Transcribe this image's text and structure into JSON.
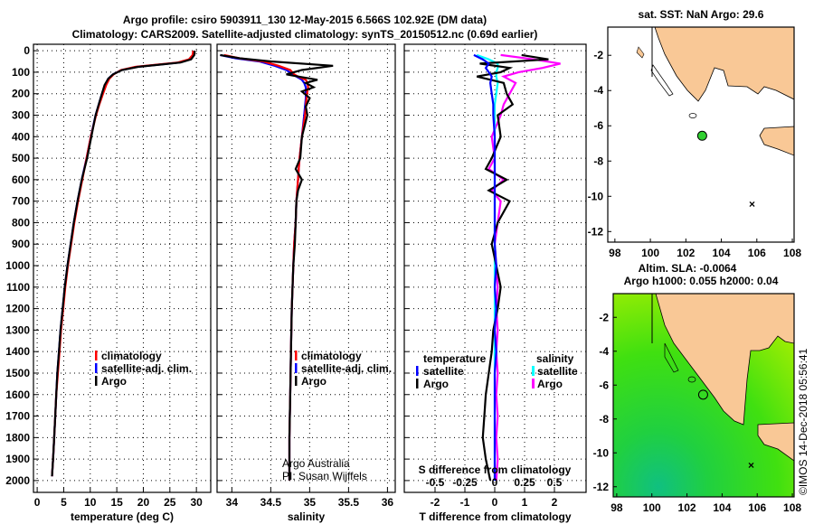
{
  "title_line1": "Argo profile: csiro 5903911_130 12-May-2015 6.566S 102.92E (DM data)",
  "title_line2": "Climatology: CARS2009. Satellite-adjusted climatology: synTS_20150512.nc (0.69d earlier)",
  "credit": "Argo Australia",
  "pi": "PI: Susan Wijffels",
  "copyright": "©IMOS 14-Dec-2018 05:56:41",
  "colors": {
    "argo": "#000000",
    "climatology": "#ff0000",
    "satellite": "#0000ff",
    "sal_satellite": "#00ffff",
    "sal_argo": "#ff00ff",
    "land": "#f9c896",
    "sea_map": "#ffffff"
  },
  "chart_data": [
    {
      "type": "line",
      "id": "temperature",
      "xlabel": "temperature (deg C)",
      "ylabel": "",
      "xlim": [
        -0.7,
        32.7
      ],
      "ylim": [
        -30,
        2055
      ],
      "y_reversed": true,
      "grid": true,
      "xticks": [
        0,
        5,
        10,
        15,
        20,
        25,
        30
      ],
      "yticks": [
        0,
        100,
        200,
        300,
        400,
        500,
        600,
        700,
        800,
        900,
        1000,
        1100,
        1200,
        1300,
        1400,
        1500,
        1600,
        1700,
        1800,
        1900,
        2000
      ],
      "legend": [
        "climatology",
        "satellite-adj. clim.",
        "Argo"
      ],
      "depth": [
        0,
        20,
        40,
        55,
        65,
        75,
        90,
        110,
        130,
        160,
        200,
        250,
        300,
        400,
        500,
        600,
        700,
        800,
        900,
        1000,
        1100,
        1200,
        1300,
        1400,
        1500,
        1600,
        1700,
        1800,
        1900,
        1980
      ],
      "series": [
        {
          "name": "Argo",
          "color": "#000000",
          "values": [
            29.7,
            29.6,
            29,
            27,
            23,
            19,
            16,
            14.3,
            13.4,
            12.7,
            12.2,
            11.6,
            11,
            10.2,
            9.4,
            8.4,
            7.6,
            6.9,
            6.3,
            5.7,
            5.2,
            4.8,
            4.4,
            4.1,
            3.8,
            3.6,
            3.4,
            3.2,
            3.0,
            2.8
          ]
        },
        {
          "name": "climatology",
          "color": "#ff0000",
          "values": [
            29.4,
            29.3,
            28.6,
            26.5,
            22.5,
            18.5,
            15.8,
            14.4,
            13.6,
            13,
            12.4,
            11.7,
            11.1,
            10.1,
            9.3,
            8.5,
            7.7,
            7.0,
            6.4,
            5.8,
            5.3,
            4.9,
            4.5,
            4.2,
            3.9,
            3.6,
            3.4,
            3.2,
            3.0,
            2.8
          ]
        },
        {
          "name": "satellite-adj. clim.",
          "color": "#0000ff",
          "values": [
            29.6,
            29.5,
            28.8,
            26.8,
            22.8,
            18.8,
            15.9,
            14.3,
            13.4,
            12.8,
            12.2,
            11.6,
            11.0,
            10.1,
            9.3,
            8.4,
            7.6,
            6.9,
            6.3,
            5.7,
            5.2,
            4.8,
            4.4,
            4.1,
            3.8,
            3.6,
            3.4,
            3.2,
            3.0,
            2.8
          ]
        }
      ]
    },
    {
      "type": "line",
      "id": "salinity",
      "xlabel": "salinity",
      "ylabel": "",
      "xlim": [
        33.81,
        36.1
      ],
      "ylim": [
        -30,
        2055
      ],
      "y_reversed": true,
      "grid": true,
      "xticks": [
        34,
        34.5,
        35,
        35.5,
        36
      ],
      "xtick_labels": [
        "34",
        "34.5",
        "35",
        "35.5",
        "36"
      ],
      "legend": [
        "climatology",
        "satellite-adj. clim.",
        "Argo"
      ],
      "depth": [
        20,
        35,
        50,
        70,
        90,
        110,
        120,
        135,
        150,
        170,
        190,
        220,
        260,
        300,
        400,
        500,
        550,
        600,
        650,
        700,
        800,
        900,
        1000,
        1200,
        1400,
        1600,
        1800,
        2000
      ],
      "series": [
        {
          "name": "Argo",
          "color": "#000000",
          "values": [
            33.85,
            34.1,
            34.5,
            35.3,
            34.9,
            34.7,
            34.85,
            35.1,
            34.95,
            35.05,
            34.9,
            35.0,
            34.95,
            34.97,
            34.9,
            34.88,
            34.82,
            34.9,
            34.85,
            34.83,
            34.82,
            34.81,
            34.79,
            34.77,
            34.76,
            34.75,
            34.74,
            34.74
          ]
        },
        {
          "name": "climatology",
          "color": "#ff0000",
          "values": [
            33.9,
            34.1,
            34.4,
            34.6,
            34.75,
            34.8,
            34.85,
            34.95,
            34.97,
            34.98,
            34.97,
            34.96,
            34.95,
            34.94,
            34.9,
            34.87,
            34.86,
            34.85,
            34.84,
            34.83,
            34.82,
            34.8,
            34.79,
            34.77,
            34.76,
            34.75,
            34.74,
            34.74
          ]
        },
        {
          "name": "satellite-adj. clim.",
          "color": "#0000ff",
          "values": [
            33.85,
            34.05,
            34.35,
            34.55,
            34.7,
            34.78,
            34.83,
            34.9,
            34.93,
            34.95,
            34.95,
            34.95,
            34.94,
            34.93,
            34.9,
            34.87,
            34.86,
            34.85,
            34.84,
            34.83,
            34.82,
            34.8,
            34.79,
            34.77,
            34.76,
            34.75,
            34.74,
            34.74
          ]
        }
      ]
    },
    {
      "type": "line",
      "id": "difference",
      "xlabel": "T difference from climatology",
      "x2label": "S difference from climatology",
      "xlim": [
        -3.03,
        3.06
      ],
      "ylim": [
        -30,
        2055
      ],
      "y_reversed": true,
      "grid": true,
      "xticks": [
        -2,
        -1,
        0,
        1,
        2
      ],
      "s_ticks": [
        -0.5,
        -0.25,
        0,
        0.25,
        0.5
      ],
      "s_tick_labels": [
        "-0.5",
        "-0.25",
        "0",
        "0.25",
        "0.5"
      ],
      "legend": {
        "temperature": [
          "satellite",
          "Argo"
        ],
        "salinity": [
          "satellite",
          "Argo"
        ],
        "temperature_title": "temperature",
        "salinity_title": "salinity"
      },
      "depth": [
        20,
        40,
        60,
        80,
        100,
        120,
        150,
        200,
        250,
        300,
        400,
        500,
        550,
        600,
        650,
        700,
        800,
        900,
        1000,
        1100,
        1200,
        1300,
        1400,
        1500,
        1600,
        1700,
        1800,
        1900,
        2000
      ],
      "series": [
        {
          "name": "temperature satellite",
          "color": "#0000ff",
          "values": [
            -0.7,
            -0.4,
            -0.2,
            -0.3,
            -0.2,
            -0.1,
            -0.15,
            -0.1,
            -0.05,
            -0.05,
            0,
            0,
            0,
            0,
            0,
            0,
            0,
            0,
            0.05,
            0,
            0.05,
            0,
            0.05,
            0,
            0,
            0,
            0,
            0,
            0
          ]
        },
        {
          "name": "temperature Argo",
          "color": "#000000",
          "values": [
            0.9,
            1.8,
            -0.5,
            0.5,
            0.2,
            -0.6,
            0.3,
            0.4,
            0.6,
            0.1,
            0.2,
            -0.1,
            -0.3,
            0.4,
            -0.2,
            0.5,
            0.1,
            -0.1,
            0.05,
            0.2,
            0.1,
            -0.05,
            -0.1,
            -0.2,
            -0.3,
            -0.35,
            -0.4,
            -0.3,
            -0.15
          ]
        },
        {
          "name": "salinity satellite",
          "color": "#00ffff",
          "values": [
            -0.6,
            -0.2,
            0.1,
            0.1,
            0.05,
            0.05,
            0.1,
            0.05,
            0,
            0,
            0,
            0,
            0,
            0,
            0,
            0,
            0,
            0,
            0,
            0,
            0,
            0,
            0,
            0,
            0,
            0,
            0,
            0,
            0
          ]
        },
        {
          "name": "salinity Argo",
          "color": "#ff00ff",
          "values": [
            0.2,
            1.3,
            2.2,
            1.6,
            0.8,
            0.3,
            0.7,
            0.5,
            0.3,
            0.2,
            -0.1,
            0,
            -0.2,
            0.3,
            -0.1,
            0.2,
            0.1,
            0,
            0.05,
            0.1,
            0.05,
            0.1,
            0.05,
            0.1,
            0.05,
            0.1,
            0.05,
            0.1,
            0.05
          ]
        }
      ]
    },
    {
      "type": "map",
      "id": "sst-map",
      "title": "sat. SST: NaN Argo: 29.6",
      "xlim": [
        97.6,
        108.1
      ],
      "ylim": [
        -12.6,
        -0.4
      ],
      "xticks": [
        98,
        100,
        102,
        104,
        106,
        108
      ],
      "yticks": [
        -2,
        -4,
        -6,
        -8,
        -10,
        -12
      ],
      "float_position": {
        "lon": 102.92,
        "lat": -6.566
      }
    },
    {
      "type": "map",
      "id": "sla-map",
      "title_line1": "Altim. SLA: -0.0064",
      "title_line2": "Argo h1000: 0.055 h2000: 0.04",
      "xlim": [
        97.8,
        108.1
      ],
      "ylim": [
        -12.6,
        -0.6
      ],
      "xticks": [
        98,
        100,
        102,
        104,
        106,
        108
      ],
      "yticks": [
        -2,
        -4,
        -6,
        -8,
        -10,
        -12
      ],
      "float_position": {
        "lon": 102.92,
        "lat": -6.566
      }
    }
  ]
}
